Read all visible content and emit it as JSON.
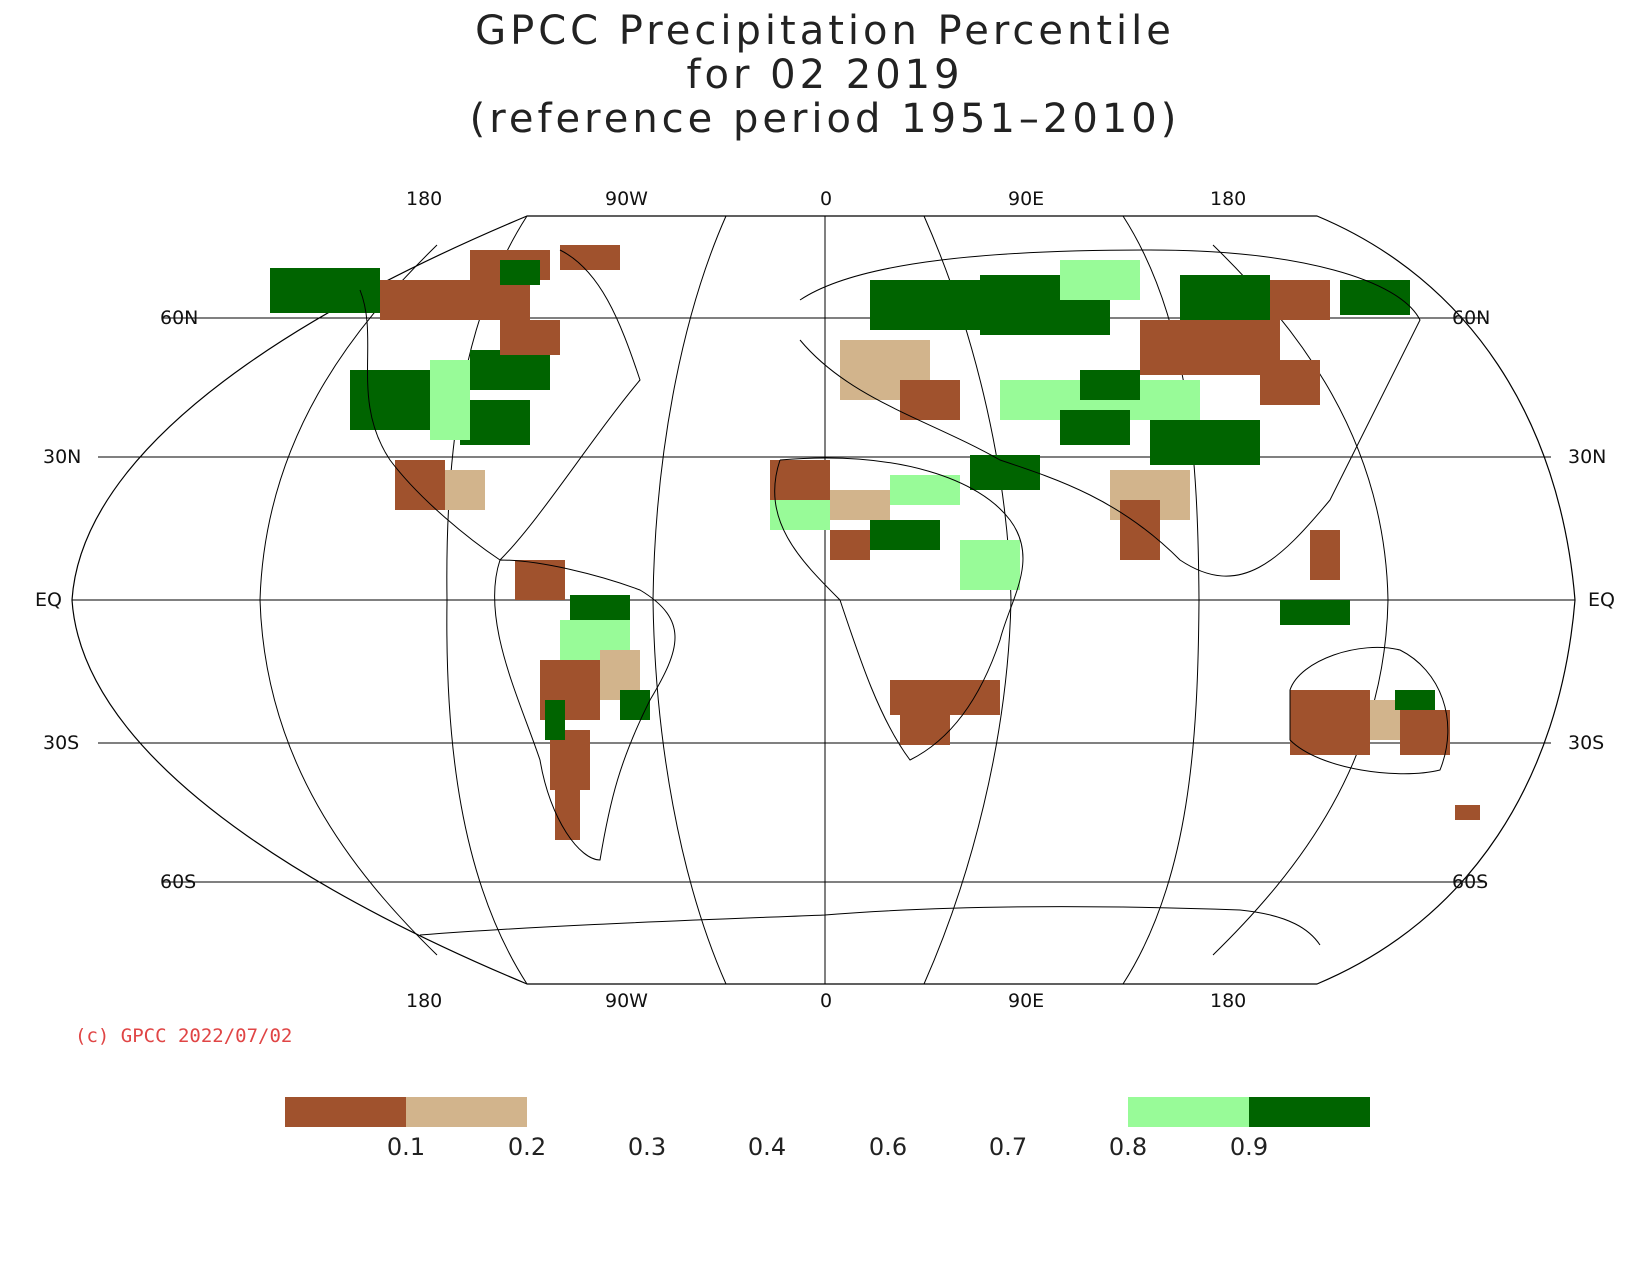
{
  "title": {
    "line1": "GPCC Precipitation Percentile",
    "line2": "for 02 2019",
    "line3": "(reference period 1951–2010)"
  },
  "axes": {
    "lon_top": [
      "180",
      "90W",
      "0",
      "90E",
      "180"
    ],
    "lon_bottom": [
      "180",
      "90W",
      "0",
      "90E",
      "180"
    ],
    "lat_left": [
      "60N",
      "30N",
      "EQ",
      "30S",
      "60S"
    ],
    "lat_right": [
      "60N",
      "30N",
      "EQ",
      "30S",
      "60S"
    ]
  },
  "copyright": "(c) GPCC 2022/07/02",
  "legend": {
    "ticks": [
      "0.1",
      "0.2",
      "0.3",
      "0.4",
      "0.6",
      "0.7",
      "0.8",
      "0.9"
    ],
    "classes": [
      {
        "range": "< 0.1",
        "color": "#a0522d"
      },
      {
        "range": "0.1 – 0.2",
        "color": "#d2b48c"
      },
      {
        "range": "0.8 – 0.9",
        "color": "#98fb98"
      },
      {
        "range": "> 0.9",
        "color": "#006400"
      }
    ]
  },
  "map": {
    "projection": "Robinson",
    "central_meridian": "0",
    "colors": {
      "very_dry": "#a0522d",
      "dry": "#d2b48c",
      "wet": "#98fb98",
      "very_wet": "#006400",
      "grid": "#000000",
      "coast": "#000000"
    }
  }
}
